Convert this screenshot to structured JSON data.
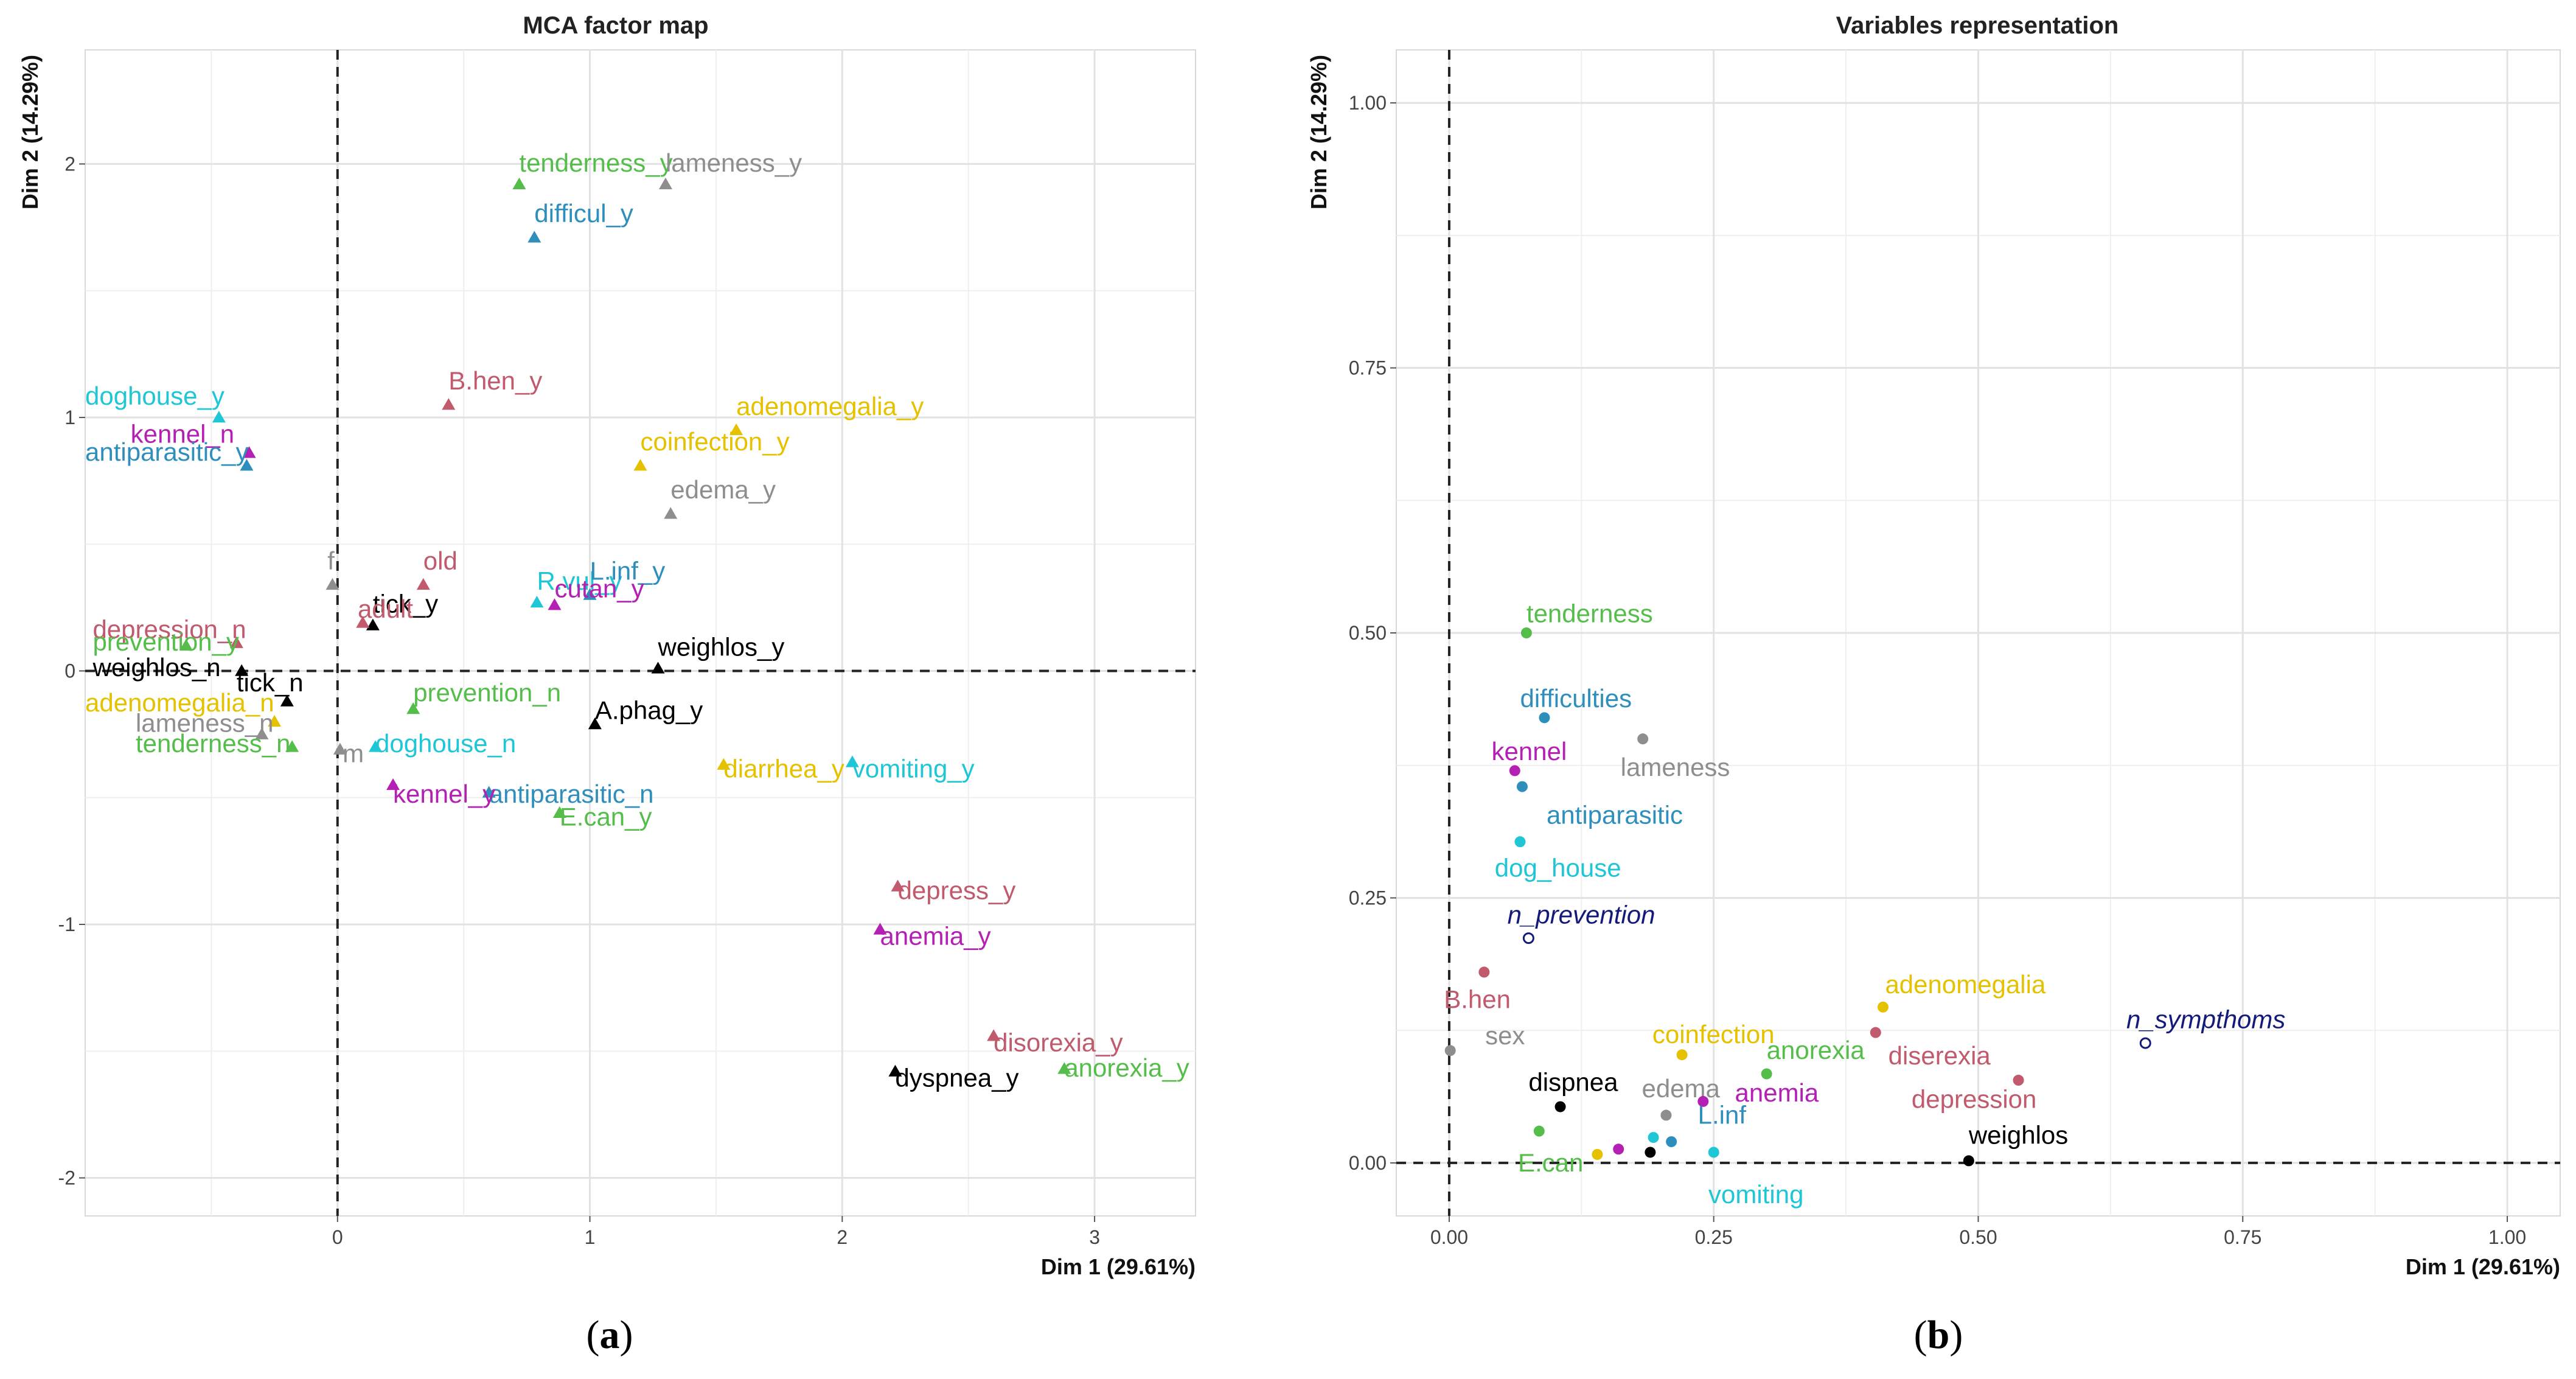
{
  "colors": {
    "black": "#000000",
    "green": "#55be4b",
    "grey": "#8e8e8e",
    "blue": "#2e8fbd",
    "cyan": "#1fc6d6",
    "pink": "#c05a6c",
    "yellow": "#e6c100",
    "magenta": "#b41fb4",
    "navy": "#141a7c"
  },
  "captions": {
    "a_open": "(",
    "a": "a",
    "a_close": ")",
    "b_open": "(",
    "b": "b",
    "b_close": ")"
  },
  "chart_data": [
    {
      "type": "scatter",
      "title": "MCA factor map",
      "xlabel": "Dim 1 (29.61%)",
      "ylabel": "Dim 2 (14.29%)",
      "xlim": [
        -1.0,
        3.4
      ],
      "ylim": [
        -2.15,
        2.45
      ],
      "xticks": [
        0,
        1,
        2,
        3
      ],
      "yticks": [
        -2,
        -1,
        0,
        1,
        2
      ],
      "marker": "triangle",
      "points": [
        {
          "x": 0.72,
          "y": 1.92,
          "label": "tenderness_y",
          "color": "green",
          "lx": 0.72,
          "ly": 1.97
        },
        {
          "x": 1.3,
          "y": 1.92,
          "label": "lameness_y",
          "color": "grey",
          "lx": 1.3,
          "ly": 1.97
        },
        {
          "x": 0.78,
          "y": 1.71,
          "label": "difficul_y",
          "color": "blue",
          "lx": 0.78,
          "ly": 1.77
        },
        {
          "x": 0.44,
          "y": 1.05,
          "label": "B.hen_y",
          "color": "pink",
          "lx": 0.44,
          "ly": 1.11
        },
        {
          "x": 1.58,
          "y": 0.95,
          "label": "adenomegalia_y",
          "color": "yellow",
          "lx": 1.58,
          "ly": 1.01
        },
        {
          "x": 1.2,
          "y": 0.81,
          "label": "coinfection_y",
          "color": "yellow",
          "lx": 1.2,
          "ly": 0.87
        },
        {
          "x": 1.32,
          "y": 0.62,
          "label": "edema_y",
          "color": "grey",
          "lx": 1.32,
          "ly": 0.68
        },
        {
          "x": -0.47,
          "y": 1.0,
          "label": "doghouse_y",
          "color": "cyan",
          "lx": -1.0,
          "ly": 1.05
        },
        {
          "x": -0.35,
          "y": 0.86,
          "label": "kennel_n",
          "color": "magenta",
          "lx": -0.82,
          "ly": 0.9
        },
        {
          "x": -0.36,
          "y": 0.81,
          "label": "antiparasitic_y",
          "color": "blue",
          "lx": -1.0,
          "ly": 0.83
        },
        {
          "x": 0.34,
          "y": 0.34,
          "label": "old",
          "color": "pink",
          "lx": 0.34,
          "ly": 0.4
        },
        {
          "x": -0.02,
          "y": 0.34,
          "label": "f",
          "color": "grey",
          "lx": -0.04,
          "ly": 0.4
        },
        {
          "x": 0.14,
          "y": 0.18,
          "label": "tick_y",
          "color": "black",
          "lx": 0.14,
          "ly": 0.23
        },
        {
          "x": 0.1,
          "y": 0.19,
          "label": "adult",
          "color": "pink",
          "lx": 0.08,
          "ly": 0.21
        },
        {
          "x": 0.79,
          "y": 0.27,
          "label": "R.vul_y",
          "color": "cyan",
          "lx": 0.79,
          "ly": 0.32
        },
        {
          "x": 1.0,
          "y": 0.3,
          "label": "L.inf_y",
          "color": "blue",
          "lx": 1.0,
          "ly": 0.36
        },
        {
          "x": 0.86,
          "y": 0.26,
          "label": "cutan_y",
          "color": "magenta",
          "lx": 0.86,
          "ly": 0.29
        },
        {
          "x": 1.27,
          "y": 0.01,
          "label": "weighlos_y",
          "color": "black",
          "lx": 1.27,
          "ly": 0.06
        },
        {
          "x": -0.4,
          "y": 0.11,
          "label": "depression_n",
          "color": "pink",
          "lx": -0.97,
          "ly": 0.13
        },
        {
          "x": -0.6,
          "y": 0.1,
          "label": "prevention_y",
          "color": "green",
          "lx": -0.97,
          "ly": 0.08
        },
        {
          "x": -0.38,
          "y": 0.0,
          "label": "weighlos_n",
          "color": "black",
          "lx": -0.97,
          "ly": -0.02
        },
        {
          "x": -0.2,
          "y": -0.12,
          "label": "tick_n",
          "color": "black",
          "lx": -0.4,
          "ly": -0.08
        },
        {
          "x": -0.25,
          "y": -0.2,
          "label": "adenomegalia_n",
          "color": "yellow",
          "lx": -1.0,
          "ly": -0.16
        },
        {
          "x": -0.3,
          "y": -0.25,
          "label": "lameness_n",
          "color": "grey",
          "lx": -0.8,
          "ly": -0.24
        },
        {
          "x": -0.18,
          "y": -0.3,
          "label": "tenderness_n",
          "color": "green",
          "lx": -0.8,
          "ly": -0.32
        },
        {
          "x": 0.3,
          "y": -0.15,
          "label": "prevention_n",
          "color": "green",
          "lx": 0.3,
          "ly": -0.12
        },
        {
          "x": 0.01,
          "y": -0.31,
          "label": "m",
          "color": "grey",
          "lx": 0.02,
          "ly": -0.36
        },
        {
          "x": 0.15,
          "y": -0.3,
          "label": "doghouse_n",
          "color": "cyan",
          "lx": 0.15,
          "ly": -0.32
        },
        {
          "x": 1.02,
          "y": -0.21,
          "label": "A.phag_y",
          "color": "black",
          "lx": 1.02,
          "ly": -0.19
        },
        {
          "x": 0.6,
          "y": -0.48,
          "label": "antiparasitic_n",
          "color": "blue",
          "lx": 0.6,
          "ly": -0.52
        },
        {
          "x": 0.22,
          "y": -0.45,
          "label": "kennel_y",
          "color": "magenta",
          "lx": 0.22,
          "ly": -0.52
        },
        {
          "x": 0.88,
          "y": -0.56,
          "label": "E.can_y",
          "color": "green",
          "lx": 0.88,
          "ly": -0.61
        },
        {
          "x": 1.53,
          "y": -0.37,
          "label": "diarrhea_y",
          "color": "yellow",
          "lx": 1.53,
          "ly": -0.42
        },
        {
          "x": 2.04,
          "y": -0.36,
          "label": "vomiting_y",
          "color": "cyan",
          "lx": 2.04,
          "ly": -0.42
        },
        {
          "x": 2.22,
          "y": -0.85,
          "label": "depress_y",
          "color": "pink",
          "lx": 2.22,
          "ly": -0.9
        },
        {
          "x": 2.15,
          "y": -1.02,
          "label": "anemia_y",
          "color": "magenta",
          "lx": 2.15,
          "ly": -1.08
        },
        {
          "x": 2.6,
          "y": -1.44,
          "label": "disorexia_y",
          "color": "pink",
          "lx": 2.6,
          "ly": -1.5
        },
        {
          "x": 2.88,
          "y": -1.57,
          "label": "anorexia_y",
          "color": "green",
          "lx": 2.88,
          "ly": -1.6
        },
        {
          "x": 2.21,
          "y": -1.58,
          "label": "dyspnea_y",
          "color": "black",
          "lx": 2.21,
          "ly": -1.64
        }
      ]
    },
    {
      "type": "scatter",
      "title": "Variables representation",
      "xlabel": "Dim 1 (29.61%)",
      "ylabel": "Dim 2 (14.29%)",
      "xlim": [
        -0.05,
        1.05
      ],
      "ylim": [
        -0.05,
        1.05
      ],
      "xticks": [
        "0.00",
        "0.25",
        "0.50",
        "0.75",
        "1.00"
      ],
      "yticks": [
        "0.00",
        "0.25",
        "0.50",
        "0.75",
        "1.00"
      ],
      "marker": "dot",
      "points": [
        {
          "x": 0.073,
          "y": 0.5,
          "label": "tenderness",
          "color": "green",
          "lx": 0.073,
          "ly": 0.51,
          "italic": false
        },
        {
          "x": 0.09,
          "y": 0.42,
          "label": "difficulties",
          "color": "blue",
          "lx": 0.067,
          "ly": 0.43,
          "italic": false
        },
        {
          "x": 0.183,
          "y": 0.4,
          "label": "lameness",
          "color": "grey",
          "lx": 0.162,
          "ly": 0.365,
          "italic": false
        },
        {
          "x": 0.062,
          "y": 0.37,
          "label": "kennel",
          "color": "magenta",
          "lx": 0.04,
          "ly": 0.38,
          "italic": false
        },
        {
          "x": 0.069,
          "y": 0.355,
          "label": "antiparasitic",
          "color": "blue",
          "lx": 0.092,
          "ly": 0.32,
          "italic": false
        },
        {
          "x": 0.067,
          "y": 0.303,
          "label": "dog_house",
          "color": "cyan",
          "lx": 0.043,
          "ly": 0.27,
          "italic": false
        },
        {
          "x": 0.075,
          "y": 0.212,
          "label": "n_prevention",
          "color": "navy",
          "lx": 0.055,
          "ly": 0.226,
          "italic": true,
          "open": true
        },
        {
          "x": 0.033,
          "y": 0.18,
          "label": "B.hen",
          "color": "pink",
          "lx": -0.005,
          "ly": 0.146,
          "italic": false
        },
        {
          "x": 0.001,
          "y": 0.106,
          "label": "sex",
          "color": "grey",
          "lx": 0.034,
          "ly": 0.112,
          "italic": false
        },
        {
          "x": 0.41,
          "y": 0.147,
          "label": "adenomegalia",
          "color": "yellow",
          "lx": 0.412,
          "ly": 0.16,
          "italic": false
        },
        {
          "x": 0.22,
          "y": 0.102,
          "label": "coinfection",
          "color": "yellow",
          "lx": 0.192,
          "ly": 0.113,
          "italic": false
        },
        {
          "x": 0.3,
          "y": 0.084,
          "label": "anorexia",
          "color": "green",
          "lx": 0.3,
          "ly": 0.098,
          "italic": false
        },
        {
          "x": 0.403,
          "y": 0.123,
          "label": "diserexia",
          "color": "pink",
          "lx": 0.415,
          "ly": 0.093,
          "italic": false
        },
        {
          "x": 0.538,
          "y": 0.078,
          "label": "depression",
          "color": "pink",
          "lx": 0.437,
          "ly": 0.052,
          "italic": false
        },
        {
          "x": 0.658,
          "y": 0.113,
          "label": "n_sympthoms",
          "color": "navy",
          "lx": 0.64,
          "ly": 0.127,
          "italic": true,
          "open": true
        },
        {
          "x": 0.105,
          "y": 0.053,
          "label": "dispnea",
          "color": "black",
          "lx": 0.075,
          "ly": 0.068,
          "italic": false
        },
        {
          "x": 0.205,
          "y": 0.045,
          "label": "edema",
          "color": "grey",
          "lx": 0.182,
          "ly": 0.062,
          "italic": false
        },
        {
          "x": 0.24,
          "y": 0.058,
          "label": "anemia",
          "color": "magenta",
          "lx": 0.27,
          "ly": 0.058,
          "italic": false
        },
        {
          "x": 0.491,
          "y": 0.002,
          "label": "weighlos",
          "color": "black",
          "lx": 0.491,
          "ly": 0.018,
          "italic": false
        },
        {
          "x": 0.085,
          "y": 0.03,
          "label": "E.can",
          "color": "green",
          "lx": 0.065,
          "ly": -0.008,
          "italic": false
        },
        {
          "x": 0.21,
          "y": 0.02,
          "label": "L.inf",
          "color": "blue",
          "lx": 0.235,
          "ly": 0.037,
          "italic": false
        },
        {
          "x": 0.25,
          "y": 0.01,
          "label": "vomiting",
          "color": "cyan",
          "lx": 0.245,
          "ly": -0.038,
          "italic": false
        },
        {
          "x": 0.14,
          "y": 0.008,
          "label": "",
          "color": "yellow",
          "lx": 0,
          "ly": 0,
          "italic": false
        },
        {
          "x": 0.16,
          "y": 0.013,
          "label": "",
          "color": "magenta",
          "lx": 0,
          "ly": 0,
          "italic": false
        },
        {
          "x": 0.19,
          "y": 0.01,
          "label": "",
          "color": "black",
          "lx": 0,
          "ly": 0,
          "italic": false
        },
        {
          "x": 0.193,
          "y": 0.024,
          "label": "",
          "color": "cyan",
          "lx": 0,
          "ly": 0,
          "italic": false
        }
      ]
    }
  ]
}
